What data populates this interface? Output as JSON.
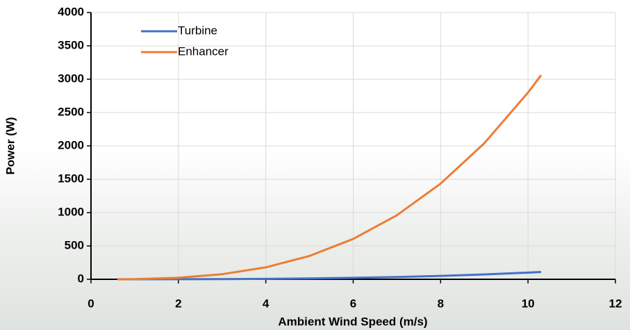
{
  "chart_data": {
    "type": "line",
    "x_label": "Ambient Wind Speed (m/s)",
    "y_label": "Power (W)",
    "x": [
      0.6,
      1,
      2,
      3,
      4,
      5,
      6,
      7,
      8,
      9,
      10,
      10.3
    ],
    "series": [
      {
        "name": "Turbine",
        "color": "#4472c4",
        "values": [
          0,
          0.1,
          0.8,
          2.7,
          6.4,
          12.5,
          21.6,
          34.3,
          51.2,
          72.9,
          100,
          109
        ]
      },
      {
        "name": "Enhancer",
        "color": "#ed7d31",
        "values": [
          0.6,
          2.8,
          22.4,
          75.6,
          179,
          350,
          605,
          960,
          1434,
          2041,
          2800,
          3060
        ]
      }
    ],
    "xlim": [
      0,
      12
    ],
    "xticks": [
      0,
      2,
      4,
      6,
      8,
      10,
      12
    ],
    "ylim": [
      0,
      4000
    ],
    "yticks": [
      0,
      500,
      1000,
      1500,
      2000,
      2500,
      3000,
      3500,
      4000
    ],
    "grid": true,
    "legend": "upper left"
  }
}
